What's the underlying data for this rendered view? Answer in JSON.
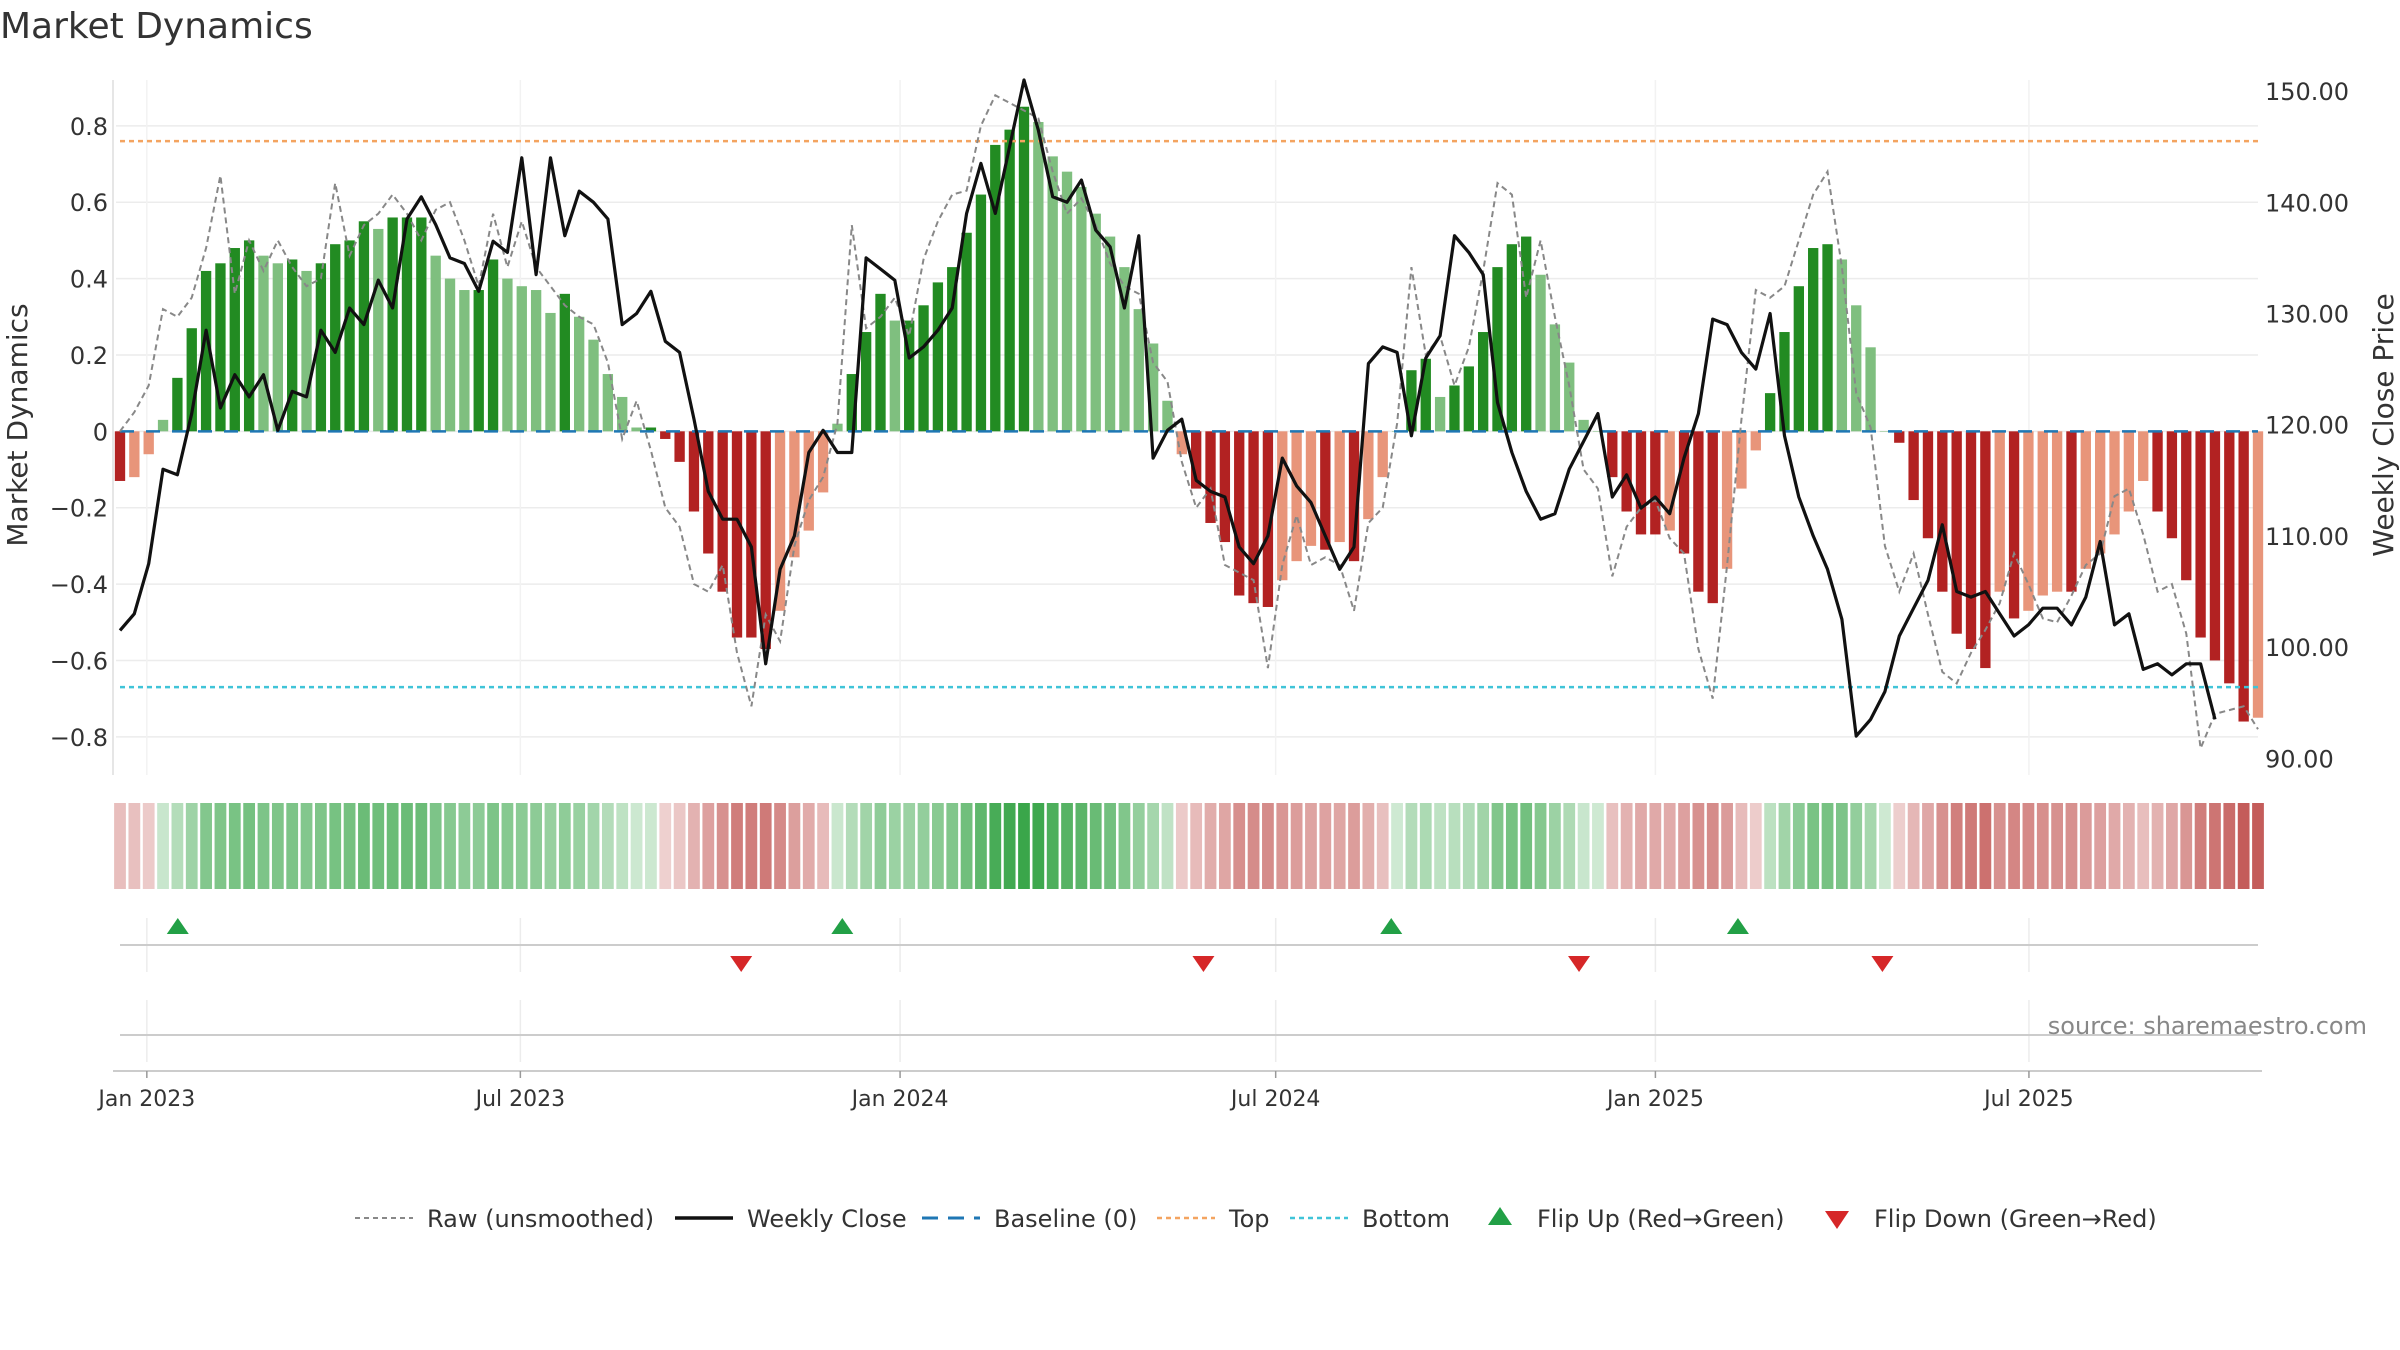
{
  "chart_data": {
    "type": "bar",
    "title": "Market Dynamics",
    "ylabel": "Market Dynamics",
    "y2label": "Weekly Close Price",
    "ylim": [
      -0.9,
      0.92
    ],
    "y2lim": [
      88.5,
      151
    ],
    "yticks": [
      "0.8",
      "0.6",
      "0.4",
      "0.2",
      "0",
      "−0.2",
      "−0.4",
      "−0.6",
      "−0.8"
    ],
    "yticks_values": [
      0.8,
      0.6,
      0.4,
      0.2,
      0,
      -0.2,
      -0.4,
      -0.6,
      -0.8
    ],
    "y2ticks": [
      "150.00",
      "140.00",
      "130.00",
      "120.00",
      "110.00",
      "100.00",
      "90.00"
    ],
    "y2ticks_values": [
      150,
      140,
      130,
      120,
      110,
      100,
      90
    ],
    "x_start": "2022-12-19",
    "x_end": "2025-10-20",
    "xticks": [
      {
        "date": "2023-01-01",
        "label": "Jan 2023"
      },
      {
        "date": "2023-07-01",
        "label": "Jul 2023"
      },
      {
        "date": "2024-01-01",
        "label": "Jan 2024"
      },
      {
        "date": "2024-07-01",
        "label": "Jul 2024"
      },
      {
        "date": "2025-01-01",
        "label": "Jan 2025"
      },
      {
        "date": "2025-07-01",
        "label": "Jul 2025"
      }
    ],
    "top_threshold": 0.76,
    "bottom_threshold": -0.67,
    "dynamics": [
      -0.13,
      -0.12,
      -0.06,
      0.03,
      0.14,
      0.27,
      0.42,
      0.44,
      0.48,
      0.5,
      0.46,
      0.44,
      0.45,
      0.42,
      0.44,
      0.49,
      0.5,
      0.55,
      0.53,
      0.56,
      0.56,
      0.56,
      0.46,
      0.4,
      0.37,
      0.37,
      0.45,
      0.4,
      0.38,
      0.37,
      0.31,
      0.36,
      0.3,
      0.24,
      0.15,
      0.09,
      0.01,
      0.01,
      -0.02,
      -0.08,
      -0.21,
      -0.32,
      -0.42,
      -0.54,
      -0.54,
      -0.57,
      -0.47,
      -0.33,
      -0.26,
      -0.16,
      0.02,
      0.15,
      0.26,
      0.36,
      0.29,
      0.29,
      0.33,
      0.39,
      0.43,
      0.52,
      0.62,
      0.75,
      0.79,
      0.85,
      0.81,
      0.72,
      0.68,
      0.64,
      0.57,
      0.51,
      0.43,
      0.32,
      0.23,
      0.08,
      -0.06,
      -0.15,
      -0.24,
      -0.29,
      -0.43,
      -0.45,
      -0.46,
      -0.39,
      -0.34,
      -0.3,
      -0.31,
      -0.29,
      -0.34,
      -0.23,
      -0.12,
      0,
      0.16,
      0.19,
      0.09,
      0.12,
      0.17,
      0.26,
      0.43,
      0.49,
      0.51,
      0.41,
      0.28,
      0.18,
      0.03,
      0,
      -0.12,
      -0.21,
      -0.27,
      -0.27,
      -0.26,
      -0.32,
      -0.42,
      -0.45,
      -0.36,
      -0.15,
      -0.05,
      0.1,
      0.26,
      0.38,
      0.48,
      0.49,
      0.45,
      0.33,
      0.22,
      0,
      -0.03,
      -0.18,
      -0.28,
      -0.42,
      -0.53,
      -0.57,
      -0.62,
      -0.42,
      -0.49,
      -0.47,
      -0.43,
      -0.42,
      -0.42,
      -0.36,
      -0.32,
      -0.27,
      -0.21,
      -0.13,
      -0.21,
      -0.28,
      -0.39,
      -0.54,
      -0.6,
      -0.66,
      -0.76,
      -0.75
    ],
    "raw": [
      0,
      0.05,
      0.12,
      0.32,
      0.3,
      0.35,
      0.48,
      0.67,
      0.36,
      0.5,
      0.42,
      0.5,
      0.43,
      0.38,
      0.4,
      0.65,
      0.46,
      0.54,
      0.57,
      0.62,
      0.57,
      0.5,
      0.58,
      0.6,
      0.5,
      0.38,
      0.57,
      0.43,
      0.55,
      0.43,
      0.38,
      0.33,
      0.3,
      0.28,
      0.18,
      -0.02,
      0.08,
      -0.05,
      -0.2,
      -0.25,
      -0.4,
      -0.42,
      -0.35,
      -0.58,
      -0.72,
      -0.48,
      -0.55,
      -0.3,
      -0.18,
      -0.12,
      0.02,
      0.54,
      0.27,
      0.3,
      0.35,
      0.25,
      0.45,
      0.55,
      0.62,
      0.63,
      0.8,
      0.88,
      0.86,
      0.84,
      0.82,
      0.68,
      0.57,
      0.61,
      0.54,
      0.44,
      0.38,
      0.36,
      0.18,
      0.13,
      -0.08,
      -0.2,
      -0.15,
      -0.35,
      -0.37,
      -0.39,
      -0.62,
      -0.35,
      -0.22,
      -0.35,
      -0.33,
      -0.35,
      -0.47,
      -0.24,
      -0.2,
      0.02,
      0.43,
      0.2,
      0.25,
      0.12,
      0.22,
      0.42,
      0.65,
      0.62,
      0.35,
      0.5,
      0.3,
      0.12,
      -0.1,
      -0.15,
      -0.38,
      -0.25,
      -0.2,
      -0.18,
      -0.28,
      -0.32,
      -0.57,
      -0.7,
      -0.35,
      0.03,
      0.37,
      0.35,
      0.38,
      0.5,
      0.62,
      0.68,
      0.43,
      0.1,
      0.01,
      -0.3,
      -0.42,
      -0.32,
      -0.48,
      -0.63,
      -0.66,
      -0.58,
      -0.52,
      -0.45,
      -0.32,
      -0.4,
      -0.49,
      -0.5,
      -0.43,
      -0.35,
      -0.32,
      -0.17,
      -0.15,
      -0.27,
      -0.42,
      -0.4,
      -0.53,
      -0.83,
      -0.74,
      -0.73,
      -0.72,
      -0.78
    ],
    "close": [
      101.5,
      103,
      107.5,
      116,
      115.5,
      121,
      128.5,
      121.5,
      124.5,
      122.5,
      124.5,
      119.5,
      123,
      122.5,
      128.5,
      126.5,
      130.5,
      129,
      133,
      130.5,
      138.5,
      140.5,
      138,
      135,
      134.5,
      132,
      136.5,
      135.5,
      144,
      133.5,
      144,
      137,
      141,
      140,
      138.5,
      129,
      130,
      132,
      127.5,
      126.5,
      120.5,
      114,
      111.5,
      111.5,
      109,
      98.5,
      107,
      110,
      117.5,
      119.5,
      117.5,
      117.5,
      135,
      134,
      133,
      126,
      127,
      128.5,
      130.5,
      139,
      143.5,
      139,
      145,
      151,
      146.5,
      140.5,
      140,
      142,
      137.5,
      136,
      130.5,
      137,
      117,
      119.5,
      120.5,
      115,
      114,
      113.5,
      109,
      107.5,
      110,
      117,
      114.5,
      113,
      110,
      107,
      109,
      125.5,
      127,
      126.5,
      119,
      126,
      128,
      137,
      135.5,
      133.5,
      122,
      117.5,
      114,
      111.5,
      112,
      116,
      118.5,
      121,
      113.5,
      115.5,
      112.5,
      113.5,
      112,
      117,
      121,
      129.5,
      129,
      126.5,
      125,
      130,
      119,
      113.5,
      110,
      107,
      102.5,
      92,
      93.5,
      96,
      101,
      103.5,
      106,
      111,
      105,
      104.5,
      105,
      103,
      101,
      102,
      103.5,
      103.5,
      102,
      104.5,
      109.5,
      102,
      103,
      98,
      98.5,
      97.5,
      98.5,
      98.5,
      93.5
    ],
    "strength_strip": "color intensity of each week mirrors the dynamics value",
    "flip_up_dates": [
      "2023-01-16",
      "2023-12-04",
      "2024-08-26",
      "2025-02-10"
    ],
    "flip_down_dates": [
      "2023-10-16",
      "2024-05-27",
      "2024-11-25",
      "2025-04-21"
    ]
  },
  "colors": {
    "green_strong": "#228b22",
    "green_weak": "#7fbf7f",
    "red_strong": "#b22222",
    "red_weak": "#e8957a",
    "close_line": "#111111",
    "raw_line": "#888888",
    "baseline": "#1f77b4",
    "top": "#f4a460",
    "bottom": "#40c4d8",
    "flip_up": "#22a046",
    "flip_down": "#d62728"
  },
  "legend": [
    {
      "key": "raw",
      "label": "Raw (unsmoothed)"
    },
    {
      "key": "close",
      "label": "Weekly Close"
    },
    {
      "key": "baseline",
      "label": "Baseline (0)"
    },
    {
      "key": "top",
      "label": "Top"
    },
    {
      "key": "bottom",
      "label": "Bottom"
    },
    {
      "key": "flip_up",
      "label": "Flip Up (Red→Green)"
    },
    {
      "key": "flip_down",
      "label": "Flip Down (Green→Red)"
    }
  ],
  "source": "source: sharemaestro.com"
}
